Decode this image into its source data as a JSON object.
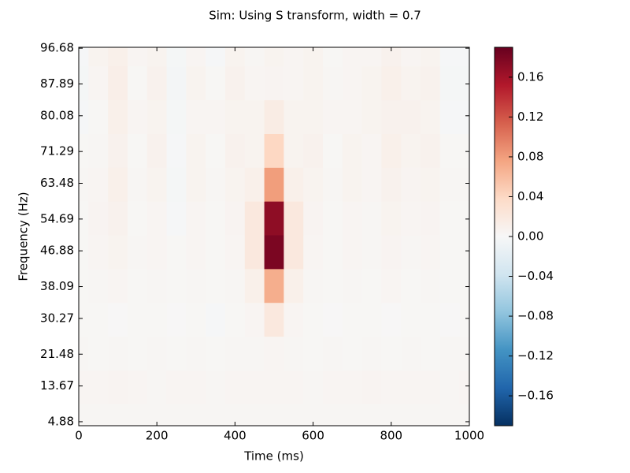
{
  "chart_data": {
    "type": "heatmap",
    "title": "Sim: Using S transform, width = 0.7",
    "xlabel": "Time (ms)",
    "ylabel": "Frequency (Hz)",
    "x": [
      0,
      50,
      100,
      150,
      200,
      250,
      300,
      350,
      400,
      450,
      500,
      550,
      600,
      650,
      700,
      750,
      800,
      850,
      900,
      950,
      1000
    ],
    "y": [
      4.88,
      13.67,
      21.48,
      30.27,
      38.09,
      46.88,
      54.69,
      63.48,
      71.29,
      80.08,
      87.89,
      96.68
    ],
    "z": [
      [
        0.003,
        0.003,
        0.003,
        0.003,
        0.003,
        0.003,
        0.003,
        0.003,
        0.003,
        0.003,
        0.003,
        0.003,
        0.003,
        0.003,
        0.003,
        0.003,
        0.003,
        0.003,
        0.003,
        0.003,
        0.003
      ],
      [
        0.004,
        0.004,
        0.005,
        0.004,
        0.003,
        0.004,
        0.004,
        0.003,
        0.004,
        0.004,
        0.004,
        0.004,
        0.003,
        0.004,
        0.004,
        0.005,
        0.004,
        0.004,
        0.004,
        0.003,
        0.004
      ],
      [
        0.003,
        0.002,
        0.003,
        0.002,
        0.003,
        0.002,
        0.003,
        0.002,
        0.003,
        0.003,
        0.004,
        0.003,
        0.002,
        0.003,
        0.002,
        0.003,
        0.002,
        0.003,
        0.002,
        0.003,
        0.003
      ],
      [
        0.002,
        0.002,
        0.001,
        0.002,
        0.002,
        0.001,
        0.002,
        -0.002,
        0.002,
        0.004,
        0.02,
        0.004,
        0.002,
        0.001,
        0.002,
        0.002,
        0.001,
        0.002,
        0.002,
        0.001,
        0.002
      ],
      [
        0.002,
        0.003,
        0.004,
        0.002,
        0.003,
        0.002,
        0.003,
        0.002,
        0.003,
        0.01,
        0.07,
        0.01,
        0.003,
        0.002,
        0.003,
        0.002,
        0.004,
        0.002,
        0.003,
        0.002,
        0.002
      ],
      [
        0.002,
        0.004,
        0.006,
        0.003,
        0.004,
        0.002,
        0.004,
        0.002,
        0.004,
        0.02,
        0.18,
        0.02,
        0.004,
        0.002,
        0.004,
        0.003,
        0.005,
        0.003,
        0.004,
        0.002,
        0.002
      ],
      [
        0.002,
        0.005,
        0.008,
        0.002,
        0.004,
        -0.002,
        0.004,
        0.002,
        0.005,
        0.02,
        0.17,
        0.02,
        0.005,
        0.002,
        0.004,
        0.003,
        0.006,
        0.004,
        0.005,
        0.002,
        0.002
      ],
      [
        0.003,
        0.004,
        0.01,
        0.003,
        0.006,
        -0.003,
        0.006,
        0.003,
        0.006,
        0.01,
        0.08,
        0.01,
        0.006,
        0.003,
        0.006,
        0.004,
        0.008,
        0.005,
        0.006,
        0.003,
        0.003
      ],
      [
        0.002,
        0.003,
        0.008,
        0.002,
        0.008,
        -0.002,
        0.006,
        0.002,
        0.008,
        0.006,
        0.04,
        0.006,
        0.008,
        0.002,
        0.006,
        0.004,
        0.01,
        0.006,
        0.008,
        0.002,
        0.002
      ],
      [
        -0.002,
        0.002,
        0.01,
        0.004,
        0.006,
        -0.003,
        0.004,
        0.004,
        0.006,
        0.006,
        0.015,
        0.006,
        0.006,
        0.004,
        0.004,
        0.006,
        0.008,
        0.008,
        0.006,
        -0.002,
        -0.002
      ],
      [
        -0.003,
        0.004,
        0.012,
        0.002,
        0.008,
        -0.004,
        0.006,
        0.002,
        0.008,
        0.004,
        0.005,
        0.004,
        0.006,
        0.003,
        0.004,
        0.006,
        0.01,
        0.006,
        0.008,
        -0.003,
        -0.003
      ],
      [
        -0.002,
        0.006,
        0.01,
        0.004,
        0.006,
        -0.003,
        0.004,
        -0.002,
        0.006,
        0.003,
        0.006,
        0.004,
        0.006,
        0.002,
        0.004,
        0.004,
        0.008,
        0.004,
        0.006,
        -0.002,
        -0.002
      ]
    ],
    "xlim": [
      0,
      1000
    ],
    "ylim": [
      3.9,
      96.9
    ],
    "xticks": [
      0,
      200,
      400,
      600,
      800,
      1000
    ],
    "yticks": [
      4.88,
      13.67,
      21.48,
      30.27,
      38.09,
      46.88,
      54.69,
      63.48,
      71.29,
      80.08,
      87.89,
      96.68
    ],
    "clim": [
      -0.19,
      0.19
    ],
    "cticks": [
      {
        "value": -0.16,
        "label": "−0.16"
      },
      {
        "value": -0.12,
        "label": "−0.12"
      },
      {
        "value": -0.08,
        "label": "−0.08"
      },
      {
        "value": -0.04,
        "label": "−0.04"
      },
      {
        "value": 0,
        "label": "0.00"
      },
      0.04,
      0.08,
      0.12,
      0.16
    ],
    "colorscale": [
      "#053061",
      "#2166ac",
      "#4393c3",
      "#92c5de",
      "#d1e5f0",
      "#f7f7f7",
      "#fddbc7",
      "#f4a582",
      "#d6604d",
      "#b2182b",
      "#67001f"
    ]
  }
}
